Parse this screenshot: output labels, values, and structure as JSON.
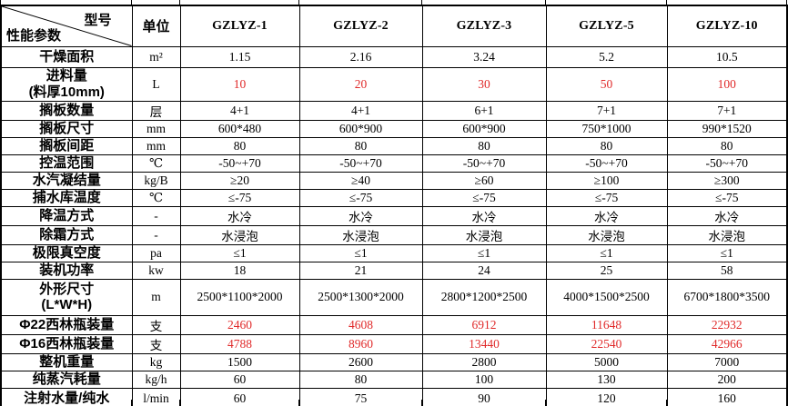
{
  "colors": {
    "background": "#ffffff",
    "border": "#000000",
    "text": "#000000",
    "red_value": "#e02a2a"
  },
  "table": {
    "corner": {
      "top_right": "型号",
      "bottom_left": "性能参数"
    },
    "unit_header": "单位",
    "models": [
      "GZLYZ-1",
      "GZLYZ-2",
      "GZLYZ-3",
      "GZLYZ-5",
      "GZLYZ-10"
    ],
    "rows": [
      {
        "label": "干燥面积",
        "unit": "m²",
        "red": false,
        "values": [
          "1.15",
          "2.16",
          "3.24",
          "5.2",
          "10.5"
        ]
      },
      {
        "label": "进料量\n(料厚10mm)",
        "unit": "L",
        "red": true,
        "values": [
          "10",
          "20",
          "30",
          "50",
          "100"
        ]
      },
      {
        "label": "搁板数量",
        "unit": "层",
        "red": false,
        "values": [
          "4+1",
          "4+1",
          "6+1",
          "7+1",
          "7+1"
        ]
      },
      {
        "label": "搁板尺寸",
        "unit": "mm",
        "red": false,
        "values": [
          "600*480",
          "600*900",
          "600*900",
          "750*1000",
          "990*1520"
        ]
      },
      {
        "label": "搁板间距",
        "unit": "mm",
        "red": false,
        "values": [
          "80",
          "80",
          "80",
          "80",
          "80"
        ]
      },
      {
        "label": "控温范围",
        "unit": "℃",
        "red": false,
        "values": [
          "-50~+70",
          "-50~+70",
          "-50~+70",
          "-50~+70",
          "-50~+70"
        ]
      },
      {
        "label": "水汽凝结量",
        "unit": "kg/B",
        "red": false,
        "values": [
          "≥20",
          "≥40",
          "≥60",
          "≥100",
          "≥300"
        ]
      },
      {
        "label": "捕水库温度",
        "unit": "℃",
        "red": false,
        "values": [
          "≤-75",
          "≤-75",
          "≤-75",
          "≤-75",
          "≤-75"
        ]
      },
      {
        "label": "降温方式",
        "unit": "-",
        "red": false,
        "values": [
          "水冷",
          "水冷",
          "水冷",
          "水冷",
          "水冷"
        ]
      },
      {
        "label": "除霜方式",
        "unit": "-",
        "red": false,
        "values": [
          "水浸泡",
          "水浸泡",
          "水浸泡",
          "水浸泡",
          "水浸泡"
        ]
      },
      {
        "label": "极限真空度",
        "unit": "pa",
        "red": false,
        "values": [
          "≤1",
          "≤1",
          "≤1",
          "≤1",
          "≤1"
        ]
      },
      {
        "label": "装机功率",
        "unit": "kw",
        "red": false,
        "values": [
          "18",
          "21",
          "24",
          "25",
          "58"
        ]
      },
      {
        "label": "外形尺寸\n(L*W*H)",
        "unit": "m",
        "red": false,
        "values": [
          "2500*1100*2000",
          "2500*1300*2000",
          "2800*1200*2500",
          "4000*1500*2500",
          "6700*1800*3500"
        ]
      },
      {
        "label": "Φ22西林瓶装量",
        "unit": "支",
        "red": true,
        "values": [
          "2460",
          "4608",
          "6912",
          "11648",
          "22932"
        ]
      },
      {
        "label": "Φ16西林瓶装量",
        "unit": "支",
        "red": true,
        "values": [
          "4788",
          "8960",
          "13440",
          "22540",
          "42966"
        ]
      },
      {
        "label": "整机重量",
        "unit": "kg",
        "red": false,
        "values": [
          "1500",
          "2600",
          "2800",
          "5000",
          "7000"
        ]
      },
      {
        "label": "纯蒸汽耗量",
        "unit": "kg/h",
        "red": false,
        "values": [
          "60",
          "80",
          "100",
          "130",
          "200"
        ]
      },
      {
        "label": "注射水量/纯水",
        "unit": "l/min",
        "red": false,
        "values": [
          "60",
          "75",
          "90",
          "120",
          "160"
        ]
      }
    ]
  }
}
